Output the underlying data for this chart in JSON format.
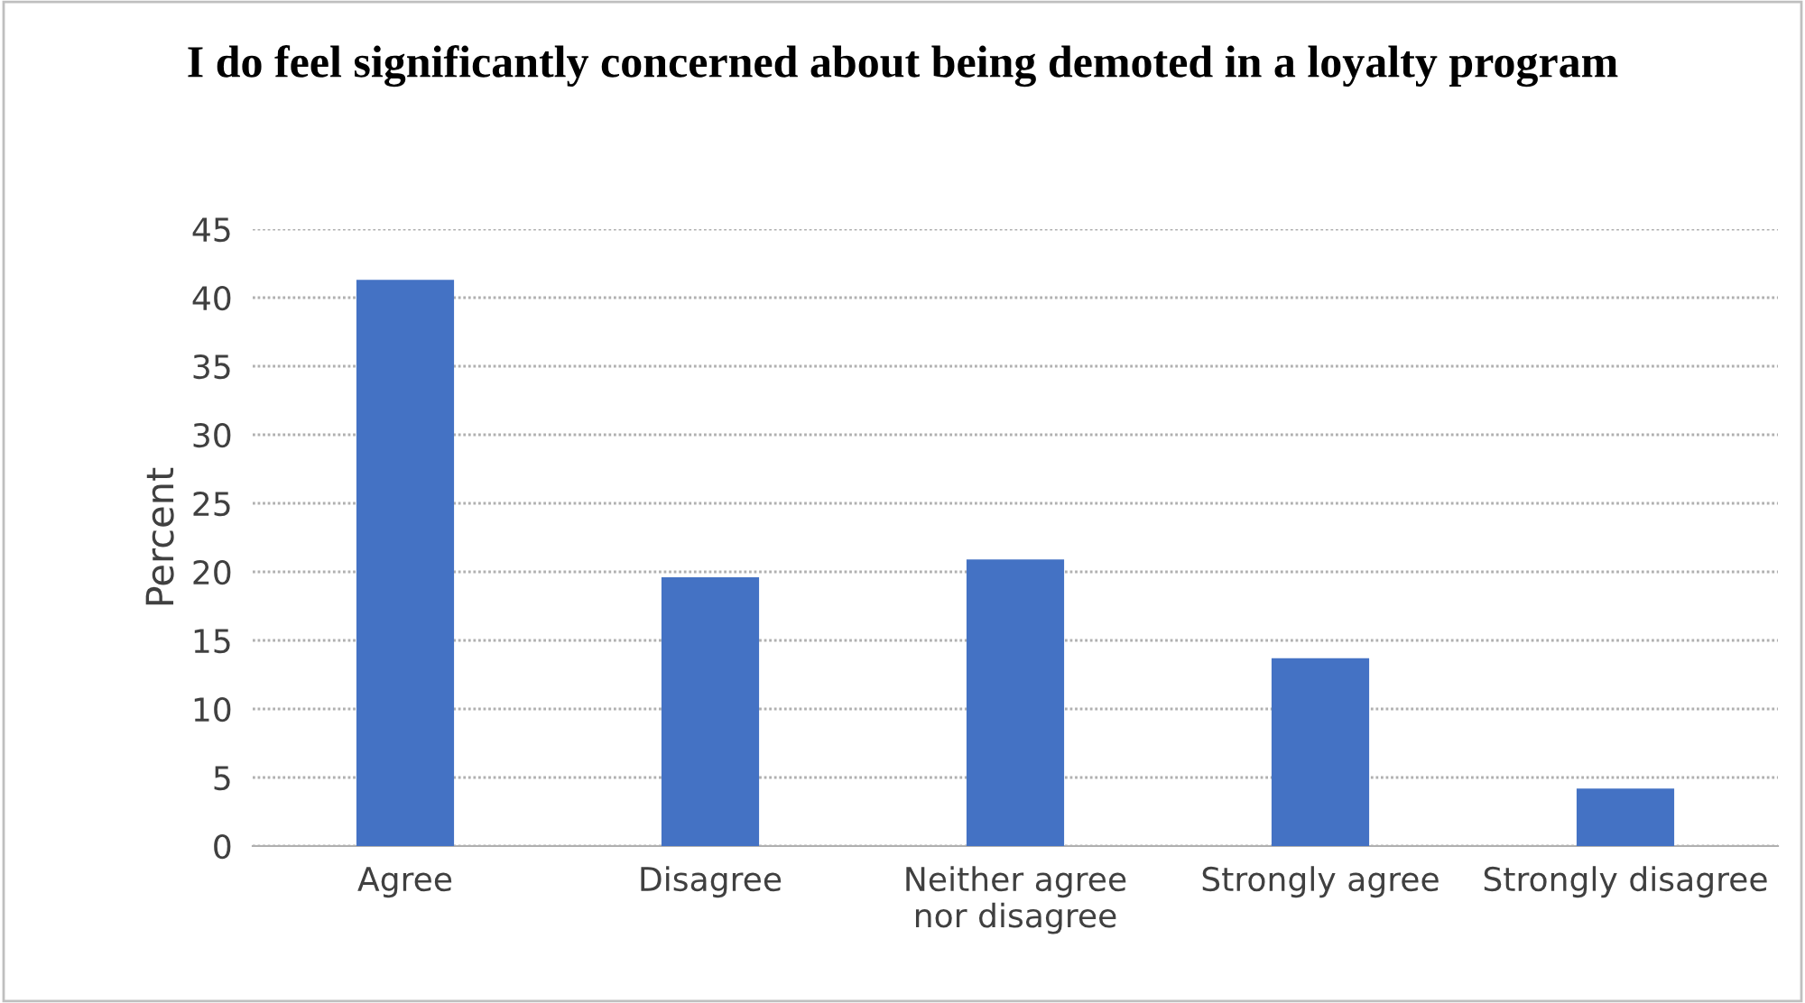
{
  "chart_data": {
    "type": "bar",
    "title": "I do feel significantly concerned about being demoted in a loyalty program",
    "ylabel": "Percent",
    "categories": [
      "Agree",
      "Disagree",
      "Neither agree\nnor disagree",
      "Strongly agree",
      "Strongly disagree"
    ],
    "values": [
      41.3,
      19.6,
      20.9,
      13.7,
      4.2
    ],
    "color": "#4472c4",
    "ylim": [
      0,
      45
    ],
    "yticks": [
      0,
      5,
      10,
      15,
      20,
      25,
      30,
      35,
      40,
      45
    ],
    "grid": "y",
    "legend": false
  }
}
